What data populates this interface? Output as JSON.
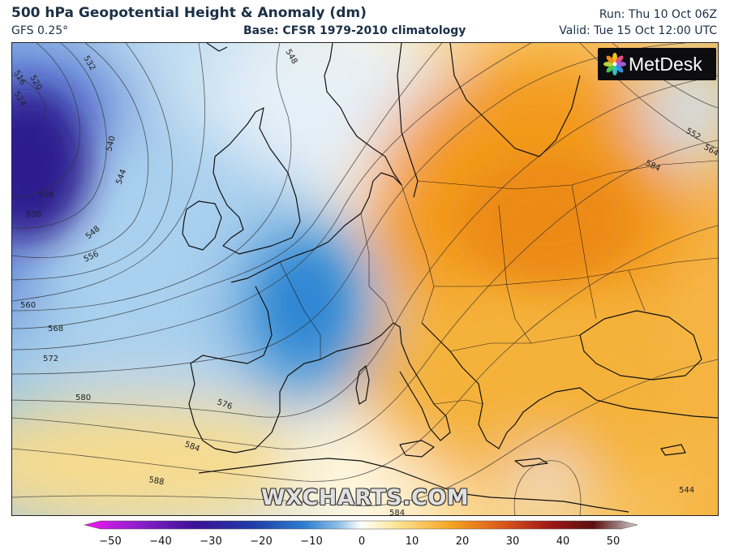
{
  "header": {
    "title": "500 hPa Geopotential Height & Anomaly (dm)",
    "model": "GFS 0.25°",
    "base": "Base: CFSR 1979-2010 climatology",
    "run": "Run: Thu 10 Oct 06Z",
    "valid": "Valid: Tue 15 Oct 12:00 UTC"
  },
  "logo": {
    "text": "MetDesk",
    "icon": "metdesk-flower-icon"
  },
  "watermark": "WXCHARTS.COM",
  "contour_labels": [
    "532",
    "516",
    "520",
    "524",
    "528",
    "536",
    "540",
    "544",
    "548",
    "556",
    "560",
    "568",
    "572",
    "576",
    "580",
    "584",
    "588",
    "544",
    "548",
    "552",
    "564",
    "584",
    "584"
  ],
  "colorbar": {
    "ticks": [
      "−50",
      "−40",
      "−30",
      "−20",
      "−10",
      "0",
      "10",
      "20",
      "30",
      "40",
      "50"
    ],
    "colors": [
      "#f218f2",
      "#8a1fc9",
      "#3a1296",
      "#1d3aa8",
      "#2f7fd0",
      "#8fc0e6",
      "#ffffff",
      "#fde79a",
      "#f6a623",
      "#d9541a",
      "#a01818",
      "#5a0e0e",
      "#cfcfcf"
    ]
  },
  "colors": {
    "title": "#1b3046",
    "strong_negative": "#3a1296",
    "negative": "#2f7fd0",
    "neutral": "#f7f7f2",
    "positive": "#f6a623",
    "strong_positive": "#e6780f",
    "coast": "#111111",
    "contour": "#333333"
  }
}
